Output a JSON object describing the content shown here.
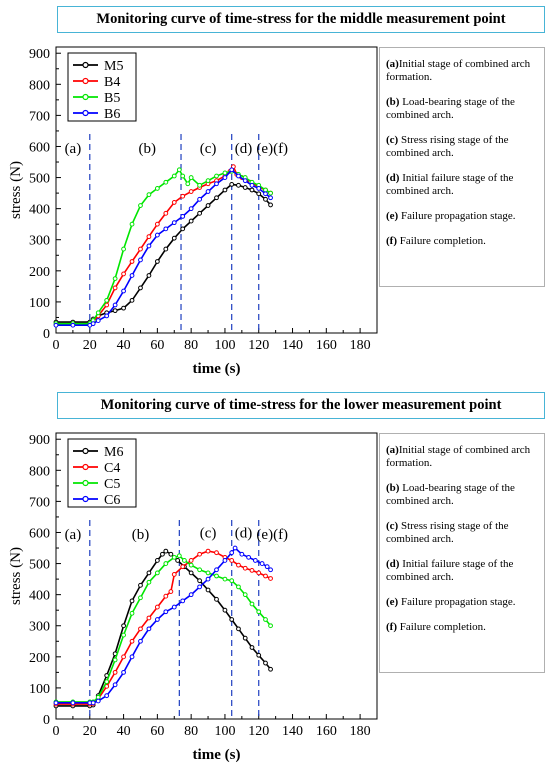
{
  "charts": [
    {
      "title": "Monitoring curve of time-stress for the middle measurement point",
      "descriptions": [
        {
          "label": "(a)",
          "text": "Initial stage of combined arch formation."
        },
        {
          "label": "(b)",
          "text": " Load-bearing stage of the combined arch."
        },
        {
          "label": "(c)",
          "text": " Stress rising stage of the combined arch."
        },
        {
          "label": "(d)",
          "text": " Initial failure stage of the combined arch."
        },
        {
          "label": "(e)",
          "text": " Failure propagation stage."
        },
        {
          "label": "(f)",
          "text": " Failure completion."
        }
      ]
    },
    {
      "title": "Monitoring curve of time-stress for the lower measurement point",
      "descriptions": [
        {
          "label": "(a)",
          "text": "Initial stage of combined arch formation."
        },
        {
          "label": "(b)",
          "text": " Load-bearing stage of the combined arch."
        },
        {
          "label": "(c)",
          "text": " Stress rising stage of the combined arch."
        },
        {
          "label": "(d)",
          "text": " Initial failure stage of the combined arch."
        },
        {
          "label": "(e)",
          "text": " Failure propagation stage."
        },
        {
          "label": "(f)",
          "text": " Failure completion."
        }
      ]
    }
  ],
  "chart_data": [
    {
      "type": "line",
      "title": "Monitoring curve of time-stress for the middle measurement point",
      "xlabel": "time (s)",
      "ylabel": "stress (N)",
      "xlim": [
        0,
        190
      ],
      "ylim": [
        0,
        920
      ],
      "xticks": [
        0,
        20,
        40,
        60,
        80,
        100,
        120,
        140,
        160,
        180
      ],
      "yticks": [
        0,
        100,
        200,
        300,
        400,
        500,
        600,
        700,
        800,
        900
      ],
      "grid": false,
      "legend_position": "top-left",
      "stage_lines": [
        20,
        74,
        104,
        120
      ],
      "stage_labels": [
        {
          "text": "(a)",
          "x": 10,
          "y": 595
        },
        {
          "text": "(b)",
          "x": 54,
          "y": 595
        },
        {
          "text": "(c)",
          "x": 90,
          "y": 595
        },
        {
          "text": "(d)",
          "x": 111,
          "y": 595
        },
        {
          "text": "(e)(f)",
          "x": 128,
          "y": 595
        }
      ],
      "series": [
        {
          "name": "M5",
          "color": "#000000",
          "points": [
            [
              0,
              35
            ],
            [
              10,
              35
            ],
            [
              20,
              35
            ],
            [
              22,
              45
            ],
            [
              25,
              55
            ],
            [
              30,
              65
            ],
            [
              35,
              72
            ],
            [
              40,
              80
            ],
            [
              45,
              105
            ],
            [
              50,
              145
            ],
            [
              55,
              185
            ],
            [
              60,
              230
            ],
            [
              65,
              270
            ],
            [
              70,
              305
            ],
            [
              75,
              335
            ],
            [
              80,
              360
            ],
            [
              85,
              385
            ],
            [
              90,
              410
            ],
            [
              95,
              435
            ],
            [
              100,
              460
            ],
            [
              104,
              478
            ],
            [
              108,
              475
            ],
            [
              112,
              468
            ],
            [
              116,
              460
            ],
            [
              120,
              448
            ],
            [
              124,
              430
            ],
            [
              127,
              412
            ]
          ]
        },
        {
          "name": "B4",
          "color": "#ff0000",
          "points": [
            [
              0,
              27
            ],
            [
              10,
              27
            ],
            [
              20,
              27
            ],
            [
              22,
              35
            ],
            [
              25,
              55
            ],
            [
              30,
              90
            ],
            [
              35,
              145
            ],
            [
              40,
              190
            ],
            [
              45,
              230
            ],
            [
              50,
              270
            ],
            [
              55,
              310
            ],
            [
              60,
              350
            ],
            [
              65,
              385
            ],
            [
              70,
              420
            ],
            [
              75,
              440
            ],
            [
              80,
              455
            ],
            [
              85,
              468
            ],
            [
              90,
              480
            ],
            [
              95,
              490
            ],
            [
              100,
              505
            ],
            [
              103,
              520
            ],
            [
              105,
              535
            ],
            [
              107,
              510
            ],
            [
              110,
              500
            ],
            [
              115,
              485
            ],
            [
              120,
              470
            ],
            [
              124,
              460
            ],
            [
              127,
              450
            ]
          ]
        },
        {
          "name": "B5",
          "color": "#00e600",
          "points": [
            [
              0,
              30
            ],
            [
              10,
              30
            ],
            [
              20,
              30
            ],
            [
              22,
              40
            ],
            [
              25,
              65
            ],
            [
              30,
              105
            ],
            [
              35,
              175
            ],
            [
              40,
              270
            ],
            [
              45,
              350
            ],
            [
              50,
              410
            ],
            [
              55,
              445
            ],
            [
              60,
              465
            ],
            [
              65,
              485
            ],
            [
              70,
              505
            ],
            [
              73,
              525
            ],
            [
              75,
              505
            ],
            [
              78,
              480
            ],
            [
              80,
              500
            ],
            [
              85,
              475
            ],
            [
              90,
              490
            ],
            [
              95,
              505
            ],
            [
              100,
              515
            ],
            [
              104,
              520
            ],
            [
              108,
              510
            ],
            [
              112,
              500
            ],
            [
              116,
              485
            ],
            [
              120,
              475
            ],
            [
              124,
              460
            ],
            [
              127,
              450
            ]
          ]
        },
        {
          "name": "B6",
          "color": "#0000ff",
          "points": [
            [
              0,
              25
            ],
            [
              10,
              25
            ],
            [
              20,
              25
            ],
            [
              22,
              30
            ],
            [
              25,
              40
            ],
            [
              30,
              55
            ],
            [
              35,
              90
            ],
            [
              40,
              135
            ],
            [
              45,
              185
            ],
            [
              50,
              235
            ],
            [
              55,
              280
            ],
            [
              60,
              315
            ],
            [
              65,
              335
            ],
            [
              70,
              355
            ],
            [
              75,
              375
            ],
            [
              80,
              400
            ],
            [
              85,
              430
            ],
            [
              90,
              455
            ],
            [
              95,
              480
            ],
            [
              100,
              500
            ],
            [
              104,
              525
            ],
            [
              108,
              505
            ],
            [
              112,
              490
            ],
            [
              116,
              475
            ],
            [
              120,
              465
            ],
            [
              124,
              448
            ],
            [
              127,
              435
            ]
          ]
        }
      ]
    },
    {
      "type": "line",
      "title": "Monitoring curve of time-stress for the lower measurement point",
      "xlabel": "time (s)",
      "ylabel": "stress (N)",
      "xlim": [
        0,
        190
      ],
      "ylim": [
        0,
        920
      ],
      "xticks": [
        0,
        20,
        40,
        60,
        80,
        100,
        120,
        140,
        160,
        180
      ],
      "yticks": [
        0,
        100,
        200,
        300,
        400,
        500,
        600,
        700,
        800,
        900
      ],
      "grid": false,
      "legend_position": "top-left",
      "stage_lines": [
        20,
        73,
        104,
        120
      ],
      "stage_labels": [
        {
          "text": "(a)",
          "x": 10,
          "y": 595
        },
        {
          "text": "(b)",
          "x": 50,
          "y": 595
        },
        {
          "text": "(c)",
          "x": 90,
          "y": 600
        },
        {
          "text": "(d)",
          "x": 111,
          "y": 600
        },
        {
          "text": "(e)(f)",
          "x": 128,
          "y": 595
        }
      ],
      "series": [
        {
          "name": "M6",
          "color": "#000000",
          "points": [
            [
              0,
              42
            ],
            [
              10,
              42
            ],
            [
              20,
              42
            ],
            [
              22,
              45
            ],
            [
              25,
              75
            ],
            [
              30,
              140
            ],
            [
              35,
              210
            ],
            [
              40,
              300
            ],
            [
              45,
              380
            ],
            [
              50,
              430
            ],
            [
              55,
              470
            ],
            [
              60,
              510
            ],
            [
              63,
              530
            ],
            [
              65,
              540
            ],
            [
              68,
              530
            ],
            [
              72,
              510
            ],
            [
              76,
              490
            ],
            [
              80,
              470
            ],
            [
              85,
              445
            ],
            [
              90,
              415
            ],
            [
              95,
              385
            ],
            [
              100,
              350
            ],
            [
              104,
              320
            ],
            [
              108,
              290
            ],
            [
              112,
              260
            ],
            [
              116,
              230
            ],
            [
              120,
              205
            ],
            [
              124,
              180
            ],
            [
              127,
              160
            ]
          ]
        },
        {
          "name": "C4",
          "color": "#ff0000",
          "points": [
            [
              0,
              48
            ],
            [
              10,
              48
            ],
            [
              20,
              48
            ],
            [
              22,
              50
            ],
            [
              25,
              65
            ],
            [
              30,
              105
            ],
            [
              35,
              150
            ],
            [
              40,
              200
            ],
            [
              45,
              250
            ],
            [
              50,
              290
            ],
            [
              55,
              325
            ],
            [
              60,
              360
            ],
            [
              65,
              395
            ],
            [
              68,
              410
            ],
            [
              70,
              465
            ],
            [
              75,
              490
            ],
            [
              80,
              510
            ],
            [
              85,
              530
            ],
            [
              90,
              540
            ],
            [
              95,
              535
            ],
            [
              100,
              520
            ],
            [
              104,
              510
            ],
            [
              108,
              495
            ],
            [
              112,
              485
            ],
            [
              116,
              478
            ],
            [
              120,
              470
            ],
            [
              124,
              460
            ],
            [
              127,
              452
            ]
          ]
        },
        {
          "name": "C5",
          "color": "#00e600",
          "points": [
            [
              0,
              55
            ],
            [
              10,
              55
            ],
            [
              20,
              55
            ],
            [
              22,
              55
            ],
            [
              25,
              70
            ],
            [
              30,
              120
            ],
            [
              35,
              190
            ],
            [
              40,
              270
            ],
            [
              45,
              340
            ],
            [
              50,
              390
            ],
            [
              55,
              440
            ],
            [
              60,
              470
            ],
            [
              65,
              500
            ],
            [
              70,
              520
            ],
            [
              73,
              525
            ],
            [
              76,
              510
            ],
            [
              80,
              495
            ],
            [
              85,
              480
            ],
            [
              90,
              470
            ],
            [
              95,
              460
            ],
            [
              100,
              450
            ],
            [
              104,
              445
            ],
            [
              108,
              425
            ],
            [
              112,
              400
            ],
            [
              116,
              370
            ],
            [
              120,
              345
            ],
            [
              124,
              320
            ],
            [
              127,
              300
            ]
          ]
        },
        {
          "name": "C6",
          "color": "#0000ff",
          "points": [
            [
              0,
              52
            ],
            [
              10,
              52
            ],
            [
              20,
              52
            ],
            [
              22,
              52
            ],
            [
              25,
              58
            ],
            [
              30,
              75
            ],
            [
              35,
              110
            ],
            [
              40,
              150
            ],
            [
              45,
              200
            ],
            [
              50,
              250
            ],
            [
              55,
              290
            ],
            [
              60,
              320
            ],
            [
              65,
              345
            ],
            [
              70,
              360
            ],
            [
              75,
              380
            ],
            [
              80,
              400
            ],
            [
              85,
              425
            ],
            [
              90,
              450
            ],
            [
              95,
              480
            ],
            [
              100,
              510
            ],
            [
              104,
              535
            ],
            [
              106,
              550
            ],
            [
              110,
              530
            ],
            [
              114,
              520
            ],
            [
              118,
              510
            ],
            [
              122,
              500
            ],
            [
              125,
              490
            ],
            [
              127,
              480
            ]
          ]
        }
      ]
    }
  ]
}
